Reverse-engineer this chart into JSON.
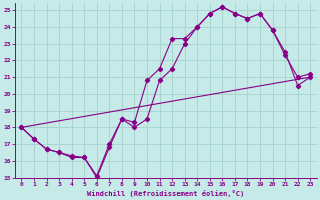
{
  "xlabel": "Windchill (Refroidissement éolien,°C)",
  "background_color": "#c5eae7",
  "grid_color": "#aad4d0",
  "line_color": "#880088",
  "xlim": [
    -0.5,
    23.5
  ],
  "ylim": [
    15,
    25.4
  ],
  "yticks": [
    15,
    16,
    17,
    18,
    19,
    20,
    21,
    22,
    23,
    24,
    25
  ],
  "xticks": [
    0,
    1,
    2,
    3,
    4,
    5,
    6,
    7,
    8,
    9,
    10,
    11,
    12,
    13,
    14,
    15,
    16,
    17,
    18,
    19,
    20,
    21,
    22,
    23
  ],
  "series": [
    {
      "x": [
        0,
        1,
        2,
        3,
        4,
        5,
        6,
        7,
        8,
        9,
        10,
        11,
        12,
        13,
        14,
        15,
        16,
        17,
        18,
        19,
        20,
        21,
        22,
        23
      ],
      "y": [
        18.0,
        17.3,
        16.7,
        16.5,
        16.3,
        16.2,
        15.0,
        16.8,
        18.5,
        18.3,
        20.8,
        21.5,
        23.3,
        23.3,
        24.0,
        24.8,
        25.2,
        24.8,
        24.5,
        24.8,
        23.8,
        22.3,
        21.0,
        21.2
      ],
      "markers": true
    },
    {
      "x": [
        0,
        1,
        2,
        3,
        4,
        5,
        6,
        7,
        8,
        9,
        10,
        11,
        12,
        13,
        14,
        15,
        16,
        17,
        18,
        19,
        20,
        21,
        22,
        23
      ],
      "y": [
        18.0,
        17.3,
        16.7,
        16.5,
        16.2,
        16.2,
        15.1,
        17.0,
        18.5,
        18.0,
        18.5,
        20.8,
        21.5,
        23.0,
        24.0,
        24.8,
        25.2,
        24.8,
        24.5,
        24.8,
        23.8,
        22.5,
        20.5,
        21.0
      ],
      "markers": true
    },
    {
      "x": [
        0,
        23
      ],
      "y": [
        18.0,
        21.0
      ],
      "markers": false
    }
  ]
}
